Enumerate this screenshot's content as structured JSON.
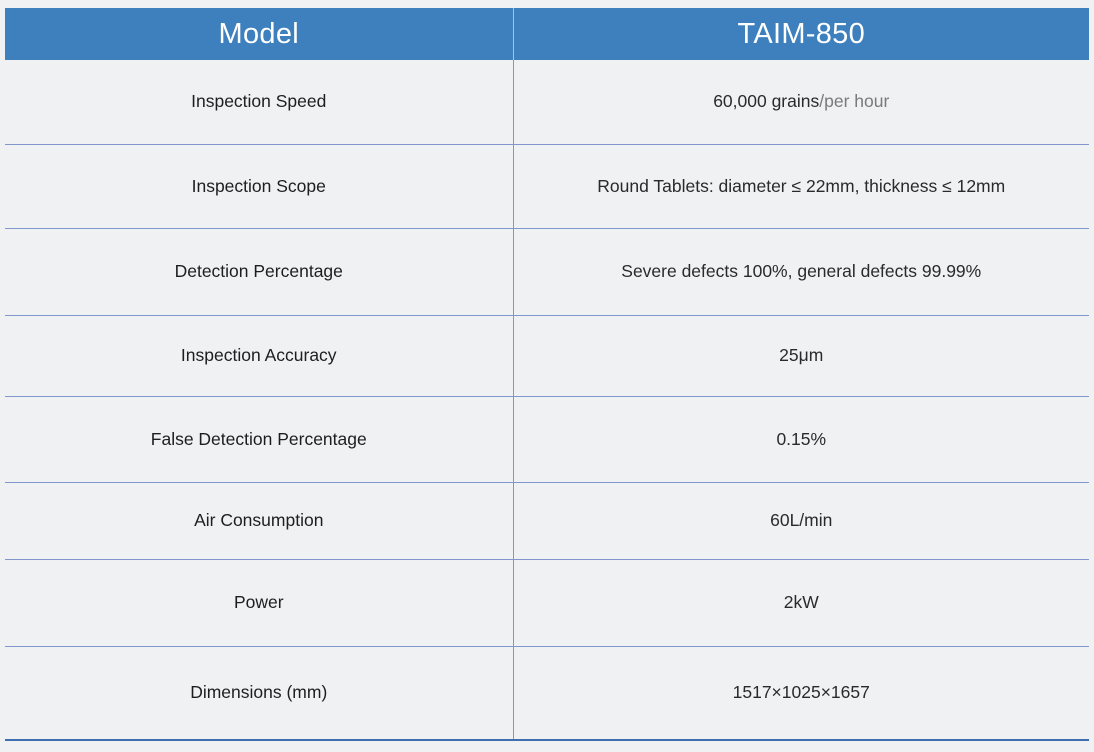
{
  "header": {
    "left": "Model",
    "right": "TAIM-850"
  },
  "rows": [
    {
      "label": "Inspection Speed",
      "value_main": "60,000 grains",
      "value_suffix": "/per hour"
    },
    {
      "label": "Inspection Scope",
      "value_main": "Round Tablets: diameter ≤ 22mm, thickness ≤ 12mm",
      "value_suffix": ""
    },
    {
      "label": "Detection Percentage",
      "value_main": "Severe defects 100%, general defects 99.99%",
      "value_suffix": ""
    },
    {
      "label": "Inspection Accuracy",
      "value_main": "25μm",
      "value_suffix": ""
    },
    {
      "label": "False Detection Percentage",
      "value_main": "0.15%",
      "value_suffix": ""
    },
    {
      "label": "Air Consumption",
      "value_main": "60L/min",
      "value_suffix": ""
    },
    {
      "label": "Power",
      "value_main": "2kW",
      "value_suffix": ""
    },
    {
      "label": "Dimensions (mm)",
      "value_main": "1517×1025×1657",
      "value_suffix": ""
    }
  ],
  "colors": {
    "header_bg": "#3e7fbd",
    "page_bg": "#f0f1f3",
    "divider": "#7f97cc"
  }
}
